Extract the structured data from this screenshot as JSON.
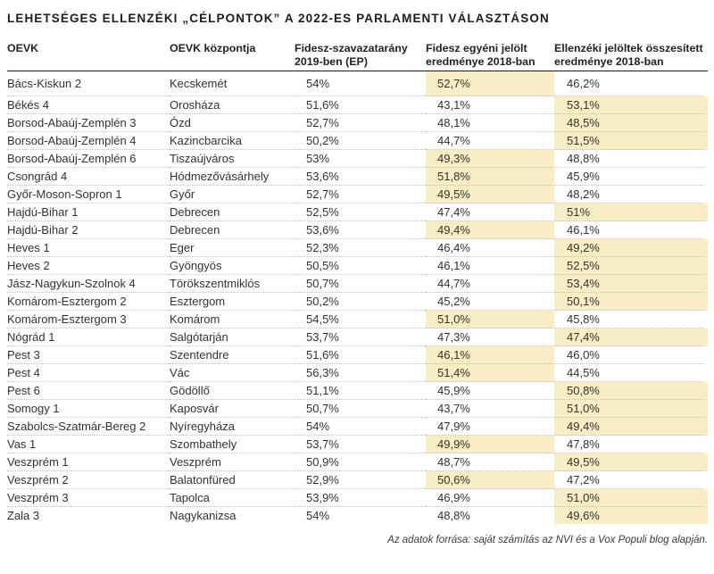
{
  "title": "LEHETSÉGES ELLENZÉKI „CÉLPONTOK” A 2022-ES PARLAMENTI VÁLASZTÁSON",
  "colors": {
    "highlight": "#f9edc6",
    "text": "#32322f",
    "divider": "#c6c2b8",
    "header_rule": "#1a1a1a"
  },
  "chart_data": {
    "type": "table",
    "title": "LEHETSÉGES ELLENZÉKI „CÉLPONTOK” A 2022-ES PARLAMENTI VÁLASZTÁSON",
    "headers": [
      [
        "OEVK"
      ],
      [
        "OEVK központja"
      ],
      [
        "Fidesz-szavazatarány",
        "2019-ben (EP)"
      ],
      [
        "Fidesz egyéni jelölt",
        "eredménye 2018-ban"
      ],
      [
        "Ellenzéki jelöltek összesített",
        "eredménye 2018-ban"
      ]
    ],
    "highlight_note": "sárga kiemelés: a magasabb 2018-as eredmény",
    "rows": [
      {
        "oevk": "Bács-Kiskun 2",
        "center": "Kecskemét",
        "fidesz_ep_2019": "54%",
        "fidesz_2018": "52,7%",
        "opposition_2018": "46,2%",
        "highlight": "fidesz_2018"
      },
      {
        "oevk": "Békés 4",
        "center": "Orosháza",
        "fidesz_ep_2019": "51,6%",
        "fidesz_2018": "43,1%",
        "opposition_2018": "53,1%",
        "highlight": "opposition_2018"
      },
      {
        "oevk": "Borsod-Abaúj-Zemplén 3",
        "center": "Ózd",
        "fidesz_ep_2019": "52,7%",
        "fidesz_2018": "48,1%",
        "opposition_2018": "48,5%",
        "highlight": "opposition_2018"
      },
      {
        "oevk": "Borsod-Abaúj-Zemplén 4",
        "center": "Kazincbarcika",
        "fidesz_ep_2019": "50,2%",
        "fidesz_2018": "44,7%",
        "opposition_2018": "51,5%",
        "highlight": "opposition_2018"
      },
      {
        "oevk": "Borsod-Abaúj-Zemplén 6",
        "center": "Tiszaújváros",
        "fidesz_ep_2019": "53%",
        "fidesz_2018": "49,3%",
        "opposition_2018": "48,8%",
        "highlight": "fidesz_2018"
      },
      {
        "oevk": "Csongrád 4",
        "center": "Hódmezővásárhely",
        "fidesz_ep_2019": "53,6%",
        "fidesz_2018": "51,8%",
        "opposition_2018": "45,9%",
        "highlight": "fidesz_2018"
      },
      {
        "oevk": "Győr-Moson-Sopron 1",
        "center": "Győr",
        "fidesz_ep_2019": "52,7%",
        "fidesz_2018": "49,5%",
        "opposition_2018": "48,2%",
        "highlight": "fidesz_2018"
      },
      {
        "oevk": "Hajdú-Bihar 1",
        "center": "Debrecen",
        "fidesz_ep_2019": "52,5%",
        "fidesz_2018": "47,4%",
        "opposition_2018": "51%",
        "highlight": "opposition_2018"
      },
      {
        "oevk": "Hajdú-Bihar 2",
        "center": "Debrecen",
        "fidesz_ep_2019": "53,6%",
        "fidesz_2018": "49,4%",
        "opposition_2018": "46,1%",
        "highlight": "fidesz_2018"
      },
      {
        "oevk": "Heves 1",
        "center": "Eger",
        "fidesz_ep_2019": "52,3%",
        "fidesz_2018": "46,4%",
        "opposition_2018": "49,2%",
        "highlight": "opposition_2018"
      },
      {
        "oevk": "Heves 2",
        "center": "Gyöngyös",
        "fidesz_ep_2019": "50,5%",
        "fidesz_2018": "46,1%",
        "opposition_2018": "52,5%",
        "highlight": "opposition_2018"
      },
      {
        "oevk": "Jász-Nagykun-Szolnok 4",
        "center": "Törökszentmiklós",
        "fidesz_ep_2019": "50,7%",
        "fidesz_2018": "44,7%",
        "opposition_2018": "53,4%",
        "highlight": "opposition_2018"
      },
      {
        "oevk": "Komárom-Esztergom 2",
        "center": "Esztergom",
        "fidesz_ep_2019": "50,2%",
        "fidesz_2018": "45,2%",
        "opposition_2018": "50,1%",
        "highlight": "opposition_2018"
      },
      {
        "oevk": "Komárom-Esztergom 3",
        "center": "Komárom",
        "fidesz_ep_2019": "54,5%",
        "fidesz_2018": "51,0%",
        "opposition_2018": "45,8%",
        "highlight": "fidesz_2018"
      },
      {
        "oevk": "Nógrád 1",
        "center": "Salgótarján",
        "fidesz_ep_2019": "53,7%",
        "fidesz_2018": "47,3%",
        "opposition_2018": "47,4%",
        "highlight": "opposition_2018"
      },
      {
        "oevk": "Pest 3",
        "center": "Szentendre",
        "fidesz_ep_2019": "51,6%",
        "fidesz_2018": "46,1%",
        "opposition_2018": "46,0%",
        "highlight": "fidesz_2018"
      },
      {
        "oevk": "Pest 4",
        "center": "Vác",
        "fidesz_ep_2019": "56,3%",
        "fidesz_2018": "51,4%",
        "opposition_2018": "44,5%",
        "highlight": "fidesz_2018"
      },
      {
        "oevk": "Pest 6",
        "center": "Gödöllő",
        "fidesz_ep_2019": "51,1%",
        "fidesz_2018": "45,9%",
        "opposition_2018": "50,8%",
        "highlight": "opposition_2018"
      },
      {
        "oevk": "Somogy 1",
        "center": "Kaposvár",
        "fidesz_ep_2019": "50,7%",
        "fidesz_2018": "43,7%",
        "opposition_2018": "51,0%",
        "highlight": "opposition_2018"
      },
      {
        "oevk": "Szabolcs-Szatmár-Bereg 2",
        "center": "Nyíregyháza",
        "fidesz_ep_2019": "54%",
        "fidesz_2018": "47,9%",
        "opposition_2018": "49,4%",
        "highlight": "opposition_2018"
      },
      {
        "oevk": "Vas 1",
        "center": "Szombathely",
        "fidesz_ep_2019": "53,7%",
        "fidesz_2018": "49,9%",
        "opposition_2018": "47,8%",
        "highlight": "fidesz_2018"
      },
      {
        "oevk": "Veszprém 1",
        "center": "Veszprém",
        "fidesz_ep_2019": "50,9%",
        "fidesz_2018": "48,7%",
        "opposition_2018": "49,5%",
        "highlight": "opposition_2018"
      },
      {
        "oevk": "Veszprém 2",
        "center": "Balatonfüred",
        "fidesz_ep_2019": "52,9%",
        "fidesz_2018": "50,6%",
        "opposition_2018": "47,2%",
        "highlight": "fidesz_2018"
      },
      {
        "oevk": "Veszprém 3",
        "center": "Tapolca",
        "fidesz_ep_2019": "53,9%",
        "fidesz_2018": "46,9%",
        "opposition_2018": "51,0%",
        "highlight": "opposition_2018"
      },
      {
        "oevk": "Zala 3",
        "center": "Nagykanizsa",
        "fidesz_ep_2019": "54%",
        "fidesz_2018": "48,8%",
        "opposition_2018": "49,6%",
        "highlight": "opposition_2018"
      }
    ]
  },
  "footer": {
    "source": "Az adatok forrása: saját számítás az NVI és a Vox Populi blog alapján."
  }
}
